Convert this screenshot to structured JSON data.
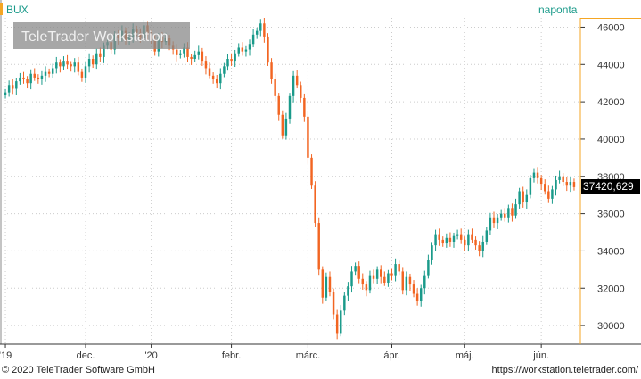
{
  "header": {
    "symbol": "BUX",
    "period": "naponta"
  },
  "watermark": "TeleTrader Workstation",
  "footer": {
    "copyright": "© 2020 TeleTrader Software GmbH",
    "url": "https://workstation.teletrader.com/"
  },
  "colors": {
    "up": "#1a9a8a",
    "down": "#f26522",
    "grid": "#cccccc",
    "price_label_bg": "#000000",
    "accent": "#f5a623"
  },
  "last_price_label": "37420,629",
  "chart_data": {
    "type": "candlestick",
    "y_axis": {
      "min": 29000,
      "max": 46500,
      "ticks": [
        30000,
        32000,
        34000,
        36000,
        38000,
        40000,
        42000,
        44000,
        46000
      ],
      "tick_labels": [
        "30000",
        "32000",
        "34000",
        "36000",
        "38000",
        "40000",
        "42000",
        "44000",
        "46000"
      ],
      "position": "right"
    },
    "x_axis": {
      "labels": [
        "'19",
        "dec.",
        "'20",
        "febr.",
        "márc.",
        "ápr.",
        "máj.",
        "jún."
      ],
      "label_index": [
        0,
        22,
        40,
        62,
        83,
        106,
        126,
        147
      ]
    },
    "grid": true,
    "close": [
      42500,
      42900,
      42700,
      43100,
      43300,
      43200,
      43000,
      43500,
      43300,
      43200,
      43400,
      43600,
      43500,
      43800,
      44100,
      43900,
      44200,
      44000,
      43900,
      44100,
      43600,
      43300,
      43900,
      44300,
      44000,
      44600,
      44400,
      45000,
      45200,
      44800,
      45600,
      45400,
      45800,
      45300,
      45500,
      45900,
      45700,
      45400,
      46100,
      45600,
      45300,
      44700,
      45500,
      45200,
      45400,
      45000,
      44800,
      44500,
      44600,
      44900,
      44400,
      44300,
      44500,
      44700,
      44200,
      43800,
      43400,
      43200,
      43000,
      43500,
      43900,
      44300,
      44200,
      44600,
      44900,
      44700,
      44800,
      45100,
      45600,
      45800,
      46200,
      45500,
      44100,
      43200,
      42300,
      41300,
      40200,
      41100,
      42300,
      43400,
      42900,
      42200,
      41200,
      39000,
      37500,
      35500,
      33000,
      31500,
      32600,
      31800,
      30600,
      29600,
      30800,
      31600,
      32100,
      32900,
      33200,
      32500,
      32200,
      31900,
      32700,
      32500,
      33000,
      32600,
      32300,
      32800,
      32700,
      33300,
      32900,
      31900,
      32600,
      32200,
      31700,
      31300,
      32000,
      32700,
      33500,
      34300,
      34900,
      34600,
      34400,
      34700,
      34500,
      34800,
      34900,
      34600,
      34300,
      34900,
      34600,
      34300,
      34000,
      34500,
      35100,
      35800,
      35500,
      35800,
      36000,
      35800,
      36300,
      35900,
      36500,
      37200,
      36600,
      37000,
      37900,
      38200,
      37900,
      37600,
      37200,
      36800,
      37300,
      37800,
      38000,
      37700,
      37500,
      37700,
      37420
    ]
  }
}
